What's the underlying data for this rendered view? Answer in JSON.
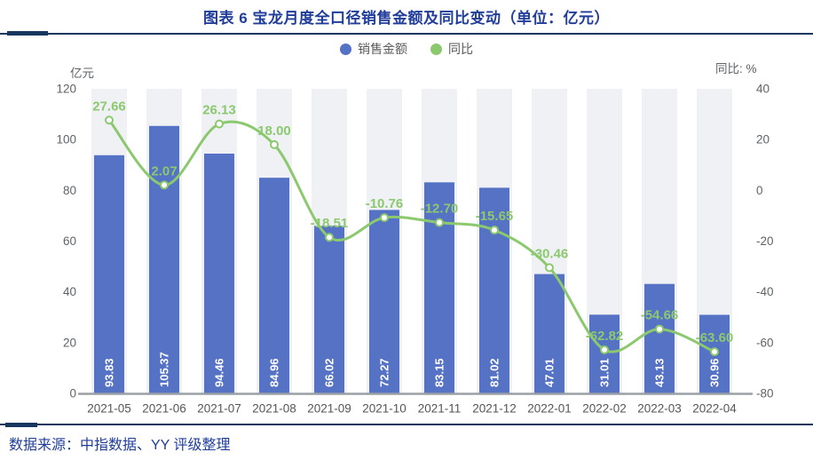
{
  "footer": {
    "source": "数据来源：中指数据、YY 评级整理"
  },
  "colors": {
    "bar": "#5572c4",
    "line": "#8cc96e",
    "band": "#eff1f5",
    "axis_text": "#5f6368",
    "axis_line": "#9aa0a6",
    "title_text": "#203d9a",
    "rule": "#17375e",
    "bar_label": "#ffffff"
  },
  "chart_data": {
    "type": "bar",
    "title": "图表 6 宝龙月度全口径销售金额及同比变动（单位：亿元）",
    "categories": [
      "2021-05",
      "2021-06",
      "2021-07",
      "2021-08",
      "2021-09",
      "2021-10",
      "2021-11",
      "2021-12",
      "2022-01",
      "2022-02",
      "2022-03",
      "2022-04"
    ],
    "series": [
      {
        "name": "销售金额",
        "type": "bar",
        "y_axis": "left",
        "unit": "亿元",
        "color": "#5572c4",
        "values": [
          "93.83",
          "105.37",
          "94.46",
          "84.96",
          "66.02",
          "72.27",
          "83.15",
          "81.02",
          "47.01",
          "31.01",
          "43.13",
          "30.96"
        ]
      },
      {
        "name": "同比",
        "type": "line",
        "y_axis": "right",
        "unit": "%",
        "color": "#8cc96e",
        "values": [
          "27.66",
          "2.07",
          "26.13",
          "18.00",
          "-18.51",
          "-10.76",
          "-12.70",
          "-15.65",
          "-30.46",
          "-62.82",
          "-54.66",
          "-63.60"
        ]
      }
    ],
    "left_axis": {
      "label": "亿元",
      "min": 0,
      "max": 120,
      "ticks": [
        0,
        20,
        40,
        60,
        80,
        100,
        120
      ]
    },
    "right_axis": {
      "label": "同比: %",
      "min": -80,
      "max": 40,
      "ticks": [
        -80,
        -60,
        -40,
        -20,
        0,
        20,
        40
      ]
    },
    "legend_position": "top",
    "grid": false,
    "column_bands": true
  }
}
